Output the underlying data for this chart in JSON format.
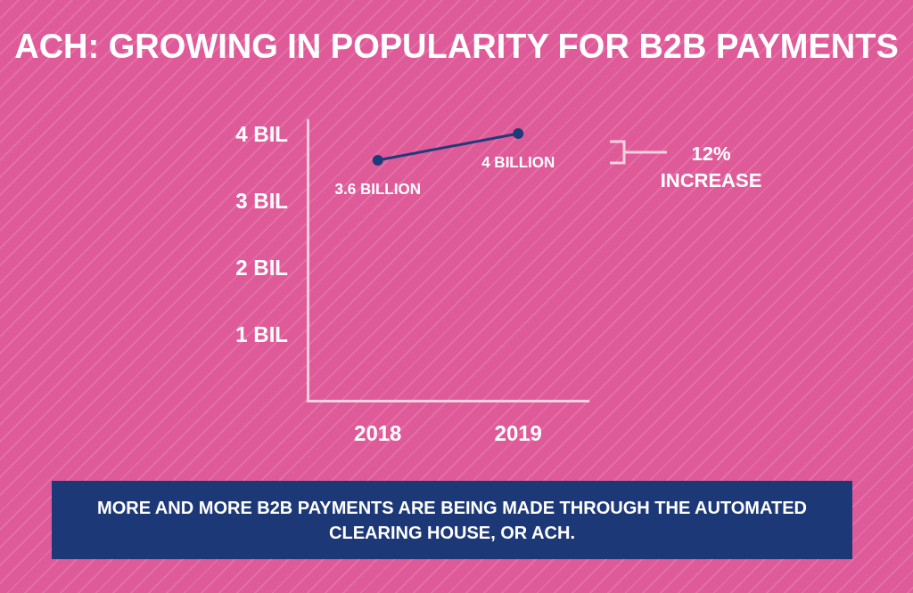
{
  "chart_data": {
    "type": "line",
    "title": "ACH: GROWING IN POPULARITY FOR B2B PAYMENTS",
    "categories": [
      "2018",
      "2019"
    ],
    "series": [
      {
        "color": "#1f3a7a",
        "values": [
          3.6,
          4
        ],
        "value_labels": [
          "3.6 BILLION",
          "4 BILLION"
        ]
      }
    ],
    "ylim": [
      0,
      4.2
    ],
    "yticks": [
      {
        "value": 1,
        "label": "1 BIL"
      },
      {
        "value": 2,
        "label": "2 BIL"
      },
      {
        "value": 3,
        "label": "3 BIL"
      },
      {
        "value": 4,
        "label": "4 BIL"
      }
    ],
    "marker": "circle",
    "line_style": "solid",
    "annotations": [
      "12% INCREASE",
      "MORE AND MORE B2B PAYMENTS ARE BEING MADE THROUGH THE AUTOMATED CLEARING HOUSE, OR ACH."
    ]
  }
}
